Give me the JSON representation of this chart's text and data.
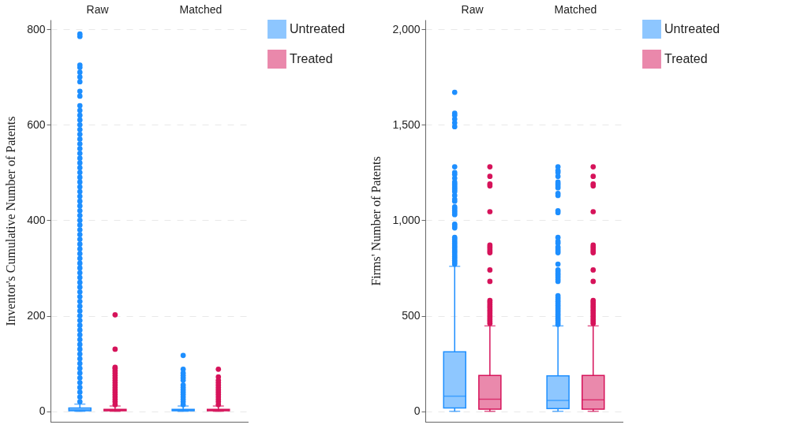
{
  "chart_data": [
    {
      "type": "box",
      "ylabel": "Inventor's Cumulative Number of Patents",
      "categories": [
        "Raw",
        "Matched"
      ],
      "ylim": [
        -22,
        820
      ],
      "yticks": [
        0,
        200,
        400,
        600,
        800
      ],
      "grid": "y",
      "legend": "right",
      "series": [
        {
          "name": "Untreated",
          "color": "#1e8fff",
          "boxes": [
            {
              "low": 0,
              "q1": 1,
              "median": 3,
              "q3": 7,
              "high": 15,
              "outliers": [
                20,
                30,
                40,
                50,
                60,
                70,
                80,
                90,
                100,
                110,
                120,
                130,
                140,
                150,
                160,
                170,
                180,
                190,
                200,
                210,
                220,
                230,
                240,
                250,
                260,
                270,
                280,
                290,
                300,
                310,
                320,
                330,
                340,
                350,
                360,
                370,
                380,
                390,
                400,
                410,
                420,
                430,
                440,
                450,
                460,
                470,
                480,
                490,
                500,
                510,
                520,
                530,
                540,
                550,
                560,
                570,
                580,
                590,
                600,
                610,
                620,
                630,
                640,
                660,
                670,
                690,
                700,
                710,
                720,
                725,
                785,
                790
              ]
            },
            {
              "low": 0,
              "q1": 1,
              "median": 2,
              "q3": 4,
              "high": 11,
              "outliers": [
                14,
                20,
                25,
                30,
                35,
                40,
                45,
                50,
                55,
                65,
                70,
                75,
                80,
                88,
                117
              ]
            }
          ]
        },
        {
          "name": "Treated",
          "color": "#d6135a",
          "boxes": [
            {
              "low": 0,
              "q1": 1,
              "median": 2,
              "q3": 4,
              "high": 11,
              "outliers": [
                14,
                20,
                25,
                30,
                35,
                40,
                45,
                50,
                55,
                60,
                65,
                70,
                75,
                80,
                85,
                90,
                92,
                130,
                202
              ]
            },
            {
              "low": 0,
              "q1": 1,
              "median": 2,
              "q3": 4,
              "high": 11,
              "outliers": [
                14,
                20,
                25,
                30,
                35,
                40,
                45,
                50,
                55,
                60,
                65,
                72,
                88
              ]
            }
          ]
        }
      ]
    },
    {
      "type": "box",
      "ylabel": "Firms' Number of Patents",
      "categories": [
        "Raw",
        "Matched"
      ],
      "ylim": [
        -55,
        2050
      ],
      "yticks": [
        0,
        500,
        {
          "value": 1000,
          "label": "1,000"
        },
        {
          "value": 1500,
          "label": "1,500"
        },
        {
          "value": 2000,
          "label": "2,000"
        }
      ],
      "grid": "y",
      "legend": "right",
      "series": [
        {
          "name": "Untreated",
          "color": "#1e8fff",
          "boxes": [
            {
              "low": 0,
              "q1": 17,
              "median": 79,
              "q3": 311,
              "high": 759,
              "outliers": [
                770,
                780,
                790,
                800,
                810,
                820,
                830,
                840,
                850,
                860,
                870,
                880,
                890,
                900,
                910,
                960,
                970,
                980,
                1030,
                1040,
                1050,
                1060,
                1070,
                1100,
                1110,
                1130,
                1150,
                1160,
                1170,
                1180,
                1190,
                1200,
                1220,
                1240,
                1250,
                1280,
                1490,
                1510,
                1530,
                1550,
                1560,
                1670
              ]
            },
            {
              "low": 0,
              "q1": 14,
              "median": 57,
              "q3": 185,
              "high": 447,
              "outliers": [
                455,
                465,
                475,
                485,
                495,
                505,
                515,
                525,
                535,
                545,
                555,
                565,
                575,
                585,
                595,
                605,
                680,
                690,
                700,
                710,
                720,
                730,
                740,
                770,
                830,
                840,
                850,
                860,
                880,
                890,
                910,
                1040,
                1050,
                1130,
                1140,
                1170,
                1180,
                1190,
                1200,
                1230,
                1250,
                1260,
                1280
              ]
            }
          ]
        },
        {
          "name": "Treated",
          "color": "#d6135a",
          "boxes": [
            {
              "low": 0,
              "q1": 11,
              "median": 63,
              "q3": 188,
              "high": 447,
              "outliers": [
                460,
                470,
                480,
                490,
                500,
                510,
                520,
                530,
                540,
                550,
                560,
                570,
                580,
                680,
                740,
                830,
                840,
                850,
                860,
                870,
                1045,
                1180,
                1190,
                1230,
                1280
              ]
            },
            {
              "low": 0,
              "q1": 11,
              "median": 60,
              "q3": 188,
              "high": 447,
              "outliers": [
                460,
                470,
                480,
                490,
                500,
                510,
                520,
                530,
                540,
                550,
                560,
                570,
                580,
                680,
                740,
                830,
                840,
                850,
                860,
                870,
                1045,
                1180,
                1190,
                1230,
                1280
              ]
            }
          ]
        }
      ]
    }
  ]
}
